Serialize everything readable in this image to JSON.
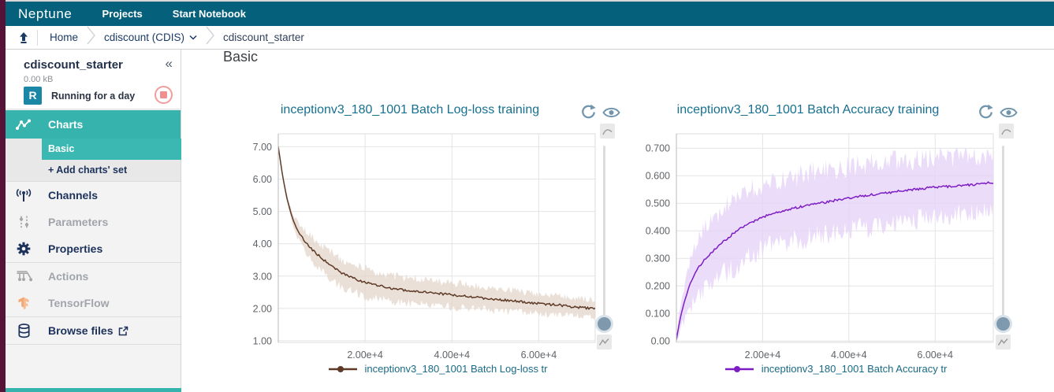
{
  "navbar": {
    "logo": "Neptune",
    "projects": "Projects",
    "start_notebook": "Start Notebook"
  },
  "breadcrumb": {
    "home": "Home",
    "project": "cdiscount (CDIS)",
    "current": "cdiscount_starter"
  },
  "sidebar": {
    "title": "cdiscount_starter",
    "collapse": "«",
    "size": "0.00 kB",
    "status_letter": "R",
    "status_text": "Running for a day",
    "charts": "Charts",
    "sub_basic": "Basic",
    "sub_add": "+ Add charts' set",
    "channels": "Channels",
    "parameters": "Parameters",
    "properties": "Properties",
    "actions": "Actions",
    "tensorflow": "TensorFlow",
    "browse_files": "Browse files"
  },
  "main": {
    "heading": "Basic"
  },
  "colors": {
    "navbar": "#05607c",
    "accent_teal": "#36b3ad",
    "navy": "#1c325b",
    "title_blue": "#17708f",
    "legend_blue": "#186a85",
    "logloss_line": "#5e3a26",
    "logloss_band": "#e3d5cb",
    "accuracy_line": "#7d1dc4",
    "accuracy_band": "#e6d3f8",
    "status_red": "#f08f8f",
    "icon_blue": "#7195ad"
  },
  "chart_data": [
    {
      "type": "line",
      "title": "inceptionv3_180_1001 Batch Log-loss training",
      "legend": "inceptionv3_180_1001 Batch Log-loss tr",
      "line_color": "#5e3a26",
      "band_color": "#e3d5cb",
      "band_opacity": 0.75,
      "xlim": [
        0,
        73000
      ],
      "ylim": [
        0.95,
        7.4
      ],
      "xticks": [
        20000,
        40000,
        60000
      ],
      "xtick_labels": [
        "2.00e+4",
        "4.00e+4",
        "6.00e+4"
      ],
      "yticks": [
        7,
        6,
        5,
        4,
        3,
        2,
        1
      ],
      "ytick_labels": [
        "7.00",
        "6.00",
        "5.00",
        "4.00",
        "3.00",
        "2.00",
        "1.00"
      ],
      "x": [
        0,
        1000,
        2000,
        3000,
        4000,
        5000,
        6000,
        8000,
        10000,
        12000,
        14000,
        16000,
        18000,
        20000,
        25000,
        30000,
        35000,
        40000,
        45000,
        50000,
        55000,
        60000,
        65000,
        70000,
        73000
      ],
      "y": [
        7.0,
        6.1,
        5.4,
        4.9,
        4.55,
        4.3,
        4.1,
        3.8,
        3.55,
        3.35,
        3.15,
        3.0,
        2.9,
        2.8,
        2.65,
        2.55,
        2.48,
        2.42,
        2.35,
        2.28,
        2.22,
        2.15,
        2.1,
        2.02,
        2.0
      ],
      "band": [
        0.02,
        0.08,
        0.15,
        0.22,
        0.3,
        0.36,
        0.42,
        0.48,
        0.52,
        0.55,
        0.55,
        0.55,
        0.55,
        0.55,
        0.52,
        0.5,
        0.5,
        0.48,
        0.45,
        0.45,
        0.42,
        0.4,
        0.38,
        0.36,
        0.35
      ]
    },
    {
      "type": "line",
      "title": "inceptionv3_180_1001 Batch Accuracy training",
      "legend": "inceptionv3_180_1001 Batch Accuracy tr",
      "line_color": "#7d1dc4",
      "band_color": "#e6d3f8",
      "band_opacity": 0.8,
      "xlim": [
        0,
        73500
      ],
      "ylim": [
        -0.005,
        0.752
      ],
      "xticks": [
        20000,
        40000,
        60000
      ],
      "xtick_labels": [
        "2.00e+4",
        "4.00e+4",
        "6.00e+4"
      ],
      "yticks": [
        0.7,
        0.6,
        0.5,
        0.4,
        0.3,
        0.2,
        0.1,
        0
      ],
      "ytick_labels": [
        "0.700",
        "0.600",
        "0.500",
        "0.400",
        "0.300",
        "0.200",
        "0.100",
        "0.00"
      ],
      "x": [
        0,
        500,
        1000,
        2000,
        3000,
        4000,
        5000,
        6000,
        8000,
        10000,
        12000,
        14000,
        16000,
        18000,
        20000,
        25000,
        30000,
        35000,
        40000,
        45000,
        50000,
        55000,
        60000,
        65000,
        70000,
        73500
      ],
      "y": [
        0.005,
        0.05,
        0.09,
        0.15,
        0.2,
        0.235,
        0.265,
        0.285,
        0.32,
        0.35,
        0.375,
        0.4,
        0.42,
        0.435,
        0.45,
        0.475,
        0.49,
        0.505,
        0.52,
        0.53,
        0.54,
        0.55,
        0.558,
        0.563,
        0.57,
        0.575
      ],
      "band": [
        0.005,
        0.04,
        0.06,
        0.09,
        0.11,
        0.12,
        0.13,
        0.135,
        0.145,
        0.15,
        0.155,
        0.16,
        0.16,
        0.155,
        0.15,
        0.15,
        0.15,
        0.15,
        0.15,
        0.148,
        0.145,
        0.14,
        0.138,
        0.134,
        0.13,
        0.13
      ]
    }
  ]
}
